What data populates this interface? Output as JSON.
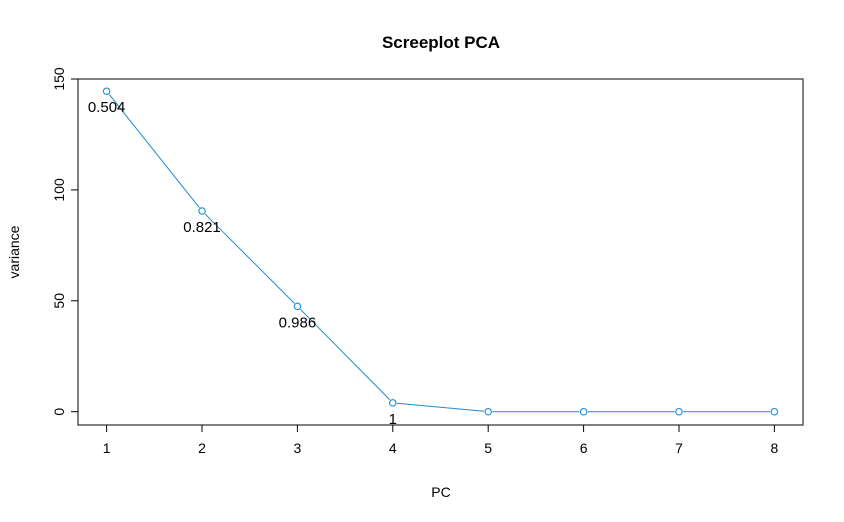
{
  "colors": {
    "series": "#1b8ccf",
    "axis": "#000000",
    "background": "#ffffff"
  },
  "chart_data": {
    "type": "line",
    "title": "Screeplot PCA",
    "xlabel": "PC",
    "ylabel": "variance",
    "x": [
      1,
      2,
      3,
      4,
      5,
      6,
      7,
      8
    ],
    "xticks": [
      "1",
      "2",
      "3",
      "4",
      "5",
      "6",
      "7",
      "8"
    ],
    "yticks": [
      "0",
      "50",
      "100",
      "150"
    ],
    "ytick_values": [
      0,
      50,
      100,
      150
    ],
    "xlim": [
      0.7,
      8.3
    ],
    "ylim": [
      -6,
      150
    ],
    "grid": false,
    "legend": "none",
    "markers": "open-circle",
    "series": [
      {
        "values": [
          144.5,
          90.5,
          47.5,
          4.0,
          0.0,
          0.0,
          0.0,
          0.0
        ],
        "labels": [
          "0.504",
          "0.821",
          "0.986",
          "1",
          "",
          "",
          "",
          ""
        ]
      }
    ]
  }
}
